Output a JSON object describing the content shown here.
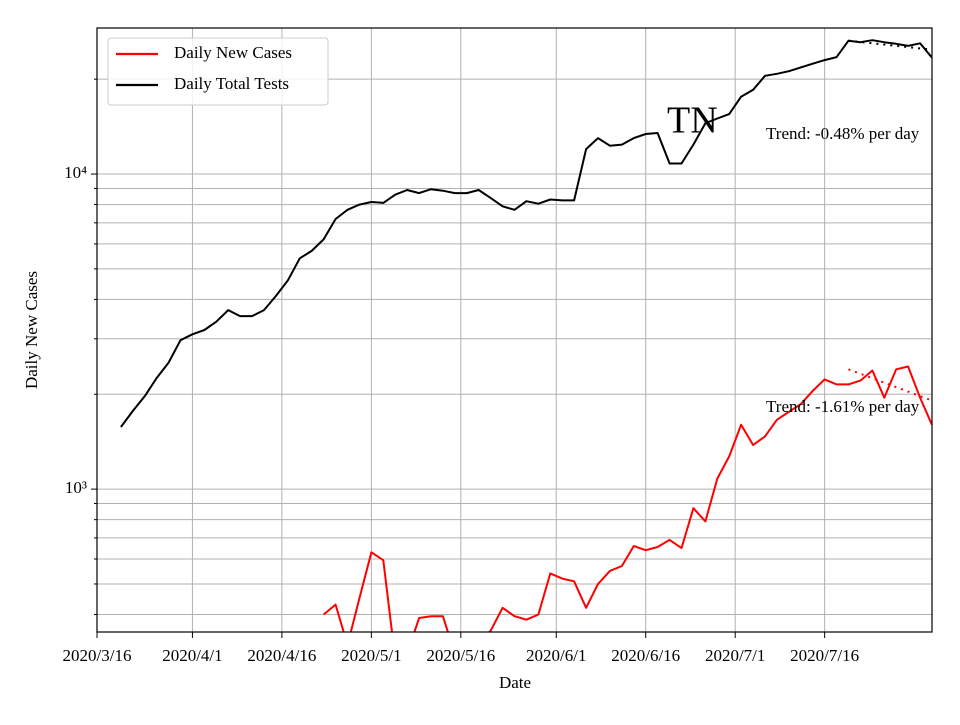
{
  "chart_data": {
    "type": "line",
    "title": "TN",
    "xlabel": "Date",
    "ylabel": "Daily New Cases",
    "log_y": true,
    "grid": true,
    "legend": "upper left",
    "xlim": [
      "2020/3/16",
      "2020/8/3"
    ],
    "xticks": [
      "2020/3/16",
      "2020/4/1",
      "2020/4/16",
      "2020/5/1",
      "2020/5/16",
      "2020/6/1",
      "2020/6/16",
      "2020/7/1",
      "2020/7/16"
    ],
    "ylim": [
      352,
      29070
    ],
    "yticks": [
      {
        "value": 1000,
        "label": "10³"
      },
      {
        "value": 10000,
        "label": "10⁴"
      }
    ],
    "yminorticks": [
      400,
      500,
      600,
      700,
      800,
      900,
      2000,
      3000,
      4000,
      5000,
      6000,
      7000,
      8000,
      9000,
      20000
    ],
    "x": [
      "2020/3/20",
      "2020/3/22",
      "2020/3/24",
      "2020/3/26",
      "2020/3/28",
      "2020/3/30",
      "2020/4/1",
      "2020/4/3",
      "2020/4/5",
      "2020/4/7",
      "2020/4/9",
      "2020/4/11",
      "2020/4/13",
      "2020/4/15",
      "2020/4/17",
      "2020/4/19",
      "2020/4/21",
      "2020/4/23",
      "2020/4/25",
      "2020/4/27",
      "2020/4/29",
      "2020/5/1",
      "2020/5/3",
      "2020/5/5",
      "2020/5/7",
      "2020/5/9",
      "2020/5/11",
      "2020/5/13",
      "2020/5/15",
      "2020/5/17",
      "2020/5/19",
      "2020/5/21",
      "2020/5/23",
      "2020/5/25",
      "2020/5/27",
      "2020/5/29",
      "2020/5/31",
      "2020/6/2",
      "2020/6/4",
      "2020/6/6",
      "2020/6/8",
      "2020/6/10",
      "2020/6/12",
      "2020/6/14",
      "2020/6/16",
      "2020/6/18",
      "2020/6/20",
      "2020/6/22",
      "2020/6/24",
      "2020/6/26",
      "2020/6/28",
      "2020/6/30",
      "2020/7/2",
      "2020/7/4",
      "2020/7/6",
      "2020/7/8",
      "2020/7/10",
      "2020/7/12",
      "2020/7/14",
      "2020/7/16",
      "2020/7/18",
      "2020/7/20",
      "2020/7/22",
      "2020/7/24",
      "2020/7/26",
      "2020/7/28",
      "2020/7/30",
      "2020/8/1",
      "2020/8/3"
    ],
    "series": [
      {
        "name": "Daily New Cases",
        "color": "#ff0000",
        "values": [
          null,
          null,
          null,
          null,
          null,
          null,
          null,
          null,
          null,
          null,
          null,
          null,
          null,
          null,
          null,
          null,
          null,
          400,
          430,
          320,
          450,
          630,
          595,
          290,
          300,
          390,
          395,
          395,
          300,
          300,
          330,
          355,
          420,
          395,
          385,
          400,
          540,
          520,
          510,
          420,
          500,
          550,
          570,
          660,
          640,
          655,
          690,
          650,
          870,
          790,
          1080,
          1270,
          1600,
          1380,
          1470,
          1660,
          1760,
          1860,
          2050,
          2230,
          2150,
          2150,
          2210,
          2380,
          1950,
          2400,
          2450,
          1950,
          1600
        ]
      },
      {
        "name": "Daily Total Tests",
        "color": "#000000",
        "values": [
          1574,
          1770,
          1970,
          2250,
          2520,
          2970,
          3100,
          3200,
          3400,
          3700,
          3540,
          3540,
          3700,
          4100,
          4600,
          5400,
          5700,
          6200,
          7200,
          7700,
          8000,
          8150,
          8100,
          8600,
          8900,
          8700,
          8950,
          8850,
          8700,
          8700,
          8900,
          8400,
          7900,
          7700,
          8200,
          8050,
          8300,
          8250,
          8250,
          12000,
          13000,
          12300,
          12400,
          13000,
          13400,
          13500,
          10800,
          10800,
          12400,
          14500,
          15000,
          15500,
          17600,
          18500,
          20500,
          20800,
          21200,
          21800,
          22400,
          23000,
          23500,
          26500,
          26200,
          26600,
          26200,
          25900,
          25500,
          26000,
          23400
        ]
      }
    ],
    "trends": [
      {
        "color": "#000000",
        "x": [
          "2020/7/20",
          "2020/8/3"
        ],
        "values": [
          26500,
          24800
        ]
      },
      {
        "color": "#ff0000",
        "x": [
          "2020/7/20",
          "2020/8/3"
        ],
        "values": [
          2400,
          1910
        ]
      }
    ],
    "annotations": [
      "Trend: -0.48% per day",
      "Trend: -1.61% per day"
    ]
  }
}
